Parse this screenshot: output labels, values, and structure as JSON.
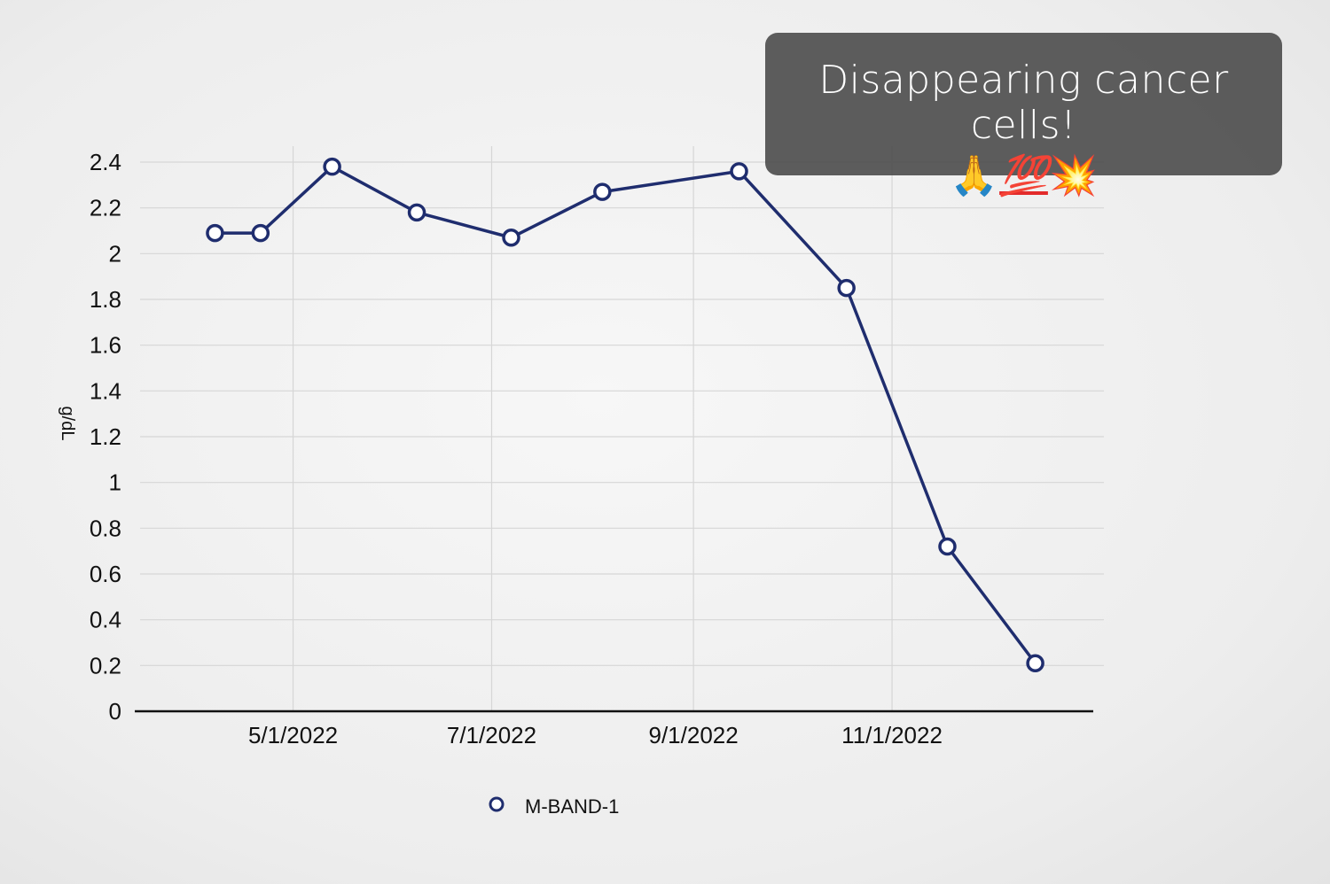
{
  "chart_data": {
    "type": "line",
    "x": [
      "2022-04-07",
      "2022-04-21",
      "2022-05-13",
      "2022-06-08",
      "2022-07-07",
      "2022-08-04",
      "2022-09-15",
      "2022-10-18",
      "2022-11-18",
      "2022-12-15"
    ],
    "series": [
      {
        "name": "M-BAND-1",
        "values": [
          2.09,
          2.09,
          2.38,
          2.18,
          2.07,
          2.27,
          2.36,
          1.85,
          0.72,
          0.21
        ]
      }
    ],
    "ylabel": "g/dL",
    "xlabel": "",
    "ylim": [
      0,
      2.4
    ],
    "yticks": [
      0,
      0.2,
      0.4,
      0.6,
      0.8,
      1,
      1.2,
      1.4,
      1.6,
      1.8,
      2,
      2.2,
      2.4
    ],
    "ytick_labels": [
      "0",
      "0.2",
      "0.4",
      "0.6",
      "0.8",
      "1",
      "1.2",
      "1.4",
      "1.6",
      "1.8",
      "2",
      "2.2",
      "2.4"
    ],
    "xlim": [
      "2022-03-15",
      "2023-01-01"
    ],
    "xticks": [
      "2022-05-01",
      "2022-07-01",
      "2022-09-01",
      "2022-11-01"
    ],
    "xtick_labels": [
      "5/1/2022",
      "7/1/2022",
      "9/1/2022",
      "11/1/2022"
    ],
    "grid": true,
    "legend_position": "bottom",
    "colors": {
      "line": "#1f2d6e",
      "marker_fill": "#ffffff",
      "grid": "#d6d6d6",
      "axis": "#111111"
    }
  },
  "overlay": {
    "text": "Disappearing cancer cells!",
    "emojis": [
      {
        "name": "folded-hands-emoji",
        "glyph": "🙏"
      },
      {
        "name": "hundred-points-emoji",
        "glyph": "💯"
      },
      {
        "name": "collision-emoji",
        "glyph": "💥"
      }
    ]
  }
}
